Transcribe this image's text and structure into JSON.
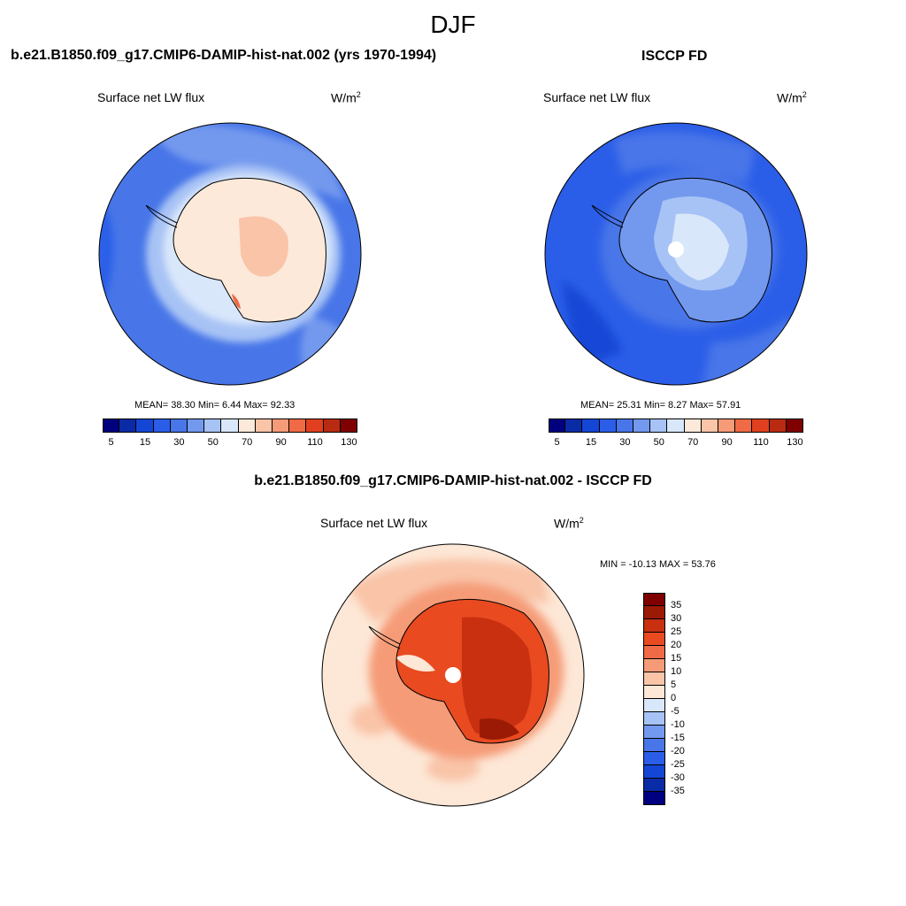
{
  "season": "DJF",
  "colors": {
    "abs_scale": [
      "#00007f",
      "#0a2ba6",
      "#1446d6",
      "#2b5ee8",
      "#4876e8",
      "#7399ee",
      "#a7c3f5",
      "#d9e7fb",
      "#fce9da",
      "#f9c4a8",
      "#f59b77",
      "#f06a45",
      "#e0401f",
      "#b82a12",
      "#7f0000"
    ],
    "diff_scale": [
      "#000080",
      "#0a2ba6",
      "#1446d6",
      "#2b5ee8",
      "#4876e8",
      "#7399ee",
      "#a7c3f5",
      "#d9e7fb",
      "#fde7d6",
      "#f9c4a8",
      "#f59b77",
      "#f06a45",
      "#e94a20",
      "#c83010",
      "#9b1a05",
      "#7f0000"
    ]
  },
  "panels": {
    "model": {
      "title": "b.e21.B1850.f09_g17.CMIP6-DAMIP-hist-nat.002 (yrs 1970-1994)",
      "variable": "Surface net LW flux",
      "units": "W/m",
      "units_sup": "2",
      "stats": "MEAN=  38.30  Min=   6.44  Max=  92.33"
    },
    "obs": {
      "title": "ISCCP FD",
      "variable": "Surface net LW flux",
      "units": "W/m",
      "units_sup": "2",
      "stats": "MEAN=  25.31  Min=   8.27  Max=  57.91"
    },
    "diff": {
      "title": "b.e21.B1850.f09_g17.CMIP6-DAMIP-hist-nat.002 - ISCCP FD",
      "variable": "Surface net LW flux",
      "units": "W/m",
      "units_sup": "2",
      "stats": "MIN = -10.13 MAX =  53.76"
    }
  },
  "abs_colorbar_labels": [
    "5",
    "15",
    "30",
    "50",
    "70",
    "90",
    "110",
    "130"
  ],
  "diff_colorbar_labels": [
    "35",
    "30",
    "25",
    "20",
    "15",
    "10",
    "5",
    "0",
    "-5",
    "-10",
    "-15",
    "-20",
    "-25",
    "-30",
    "-35"
  ]
}
